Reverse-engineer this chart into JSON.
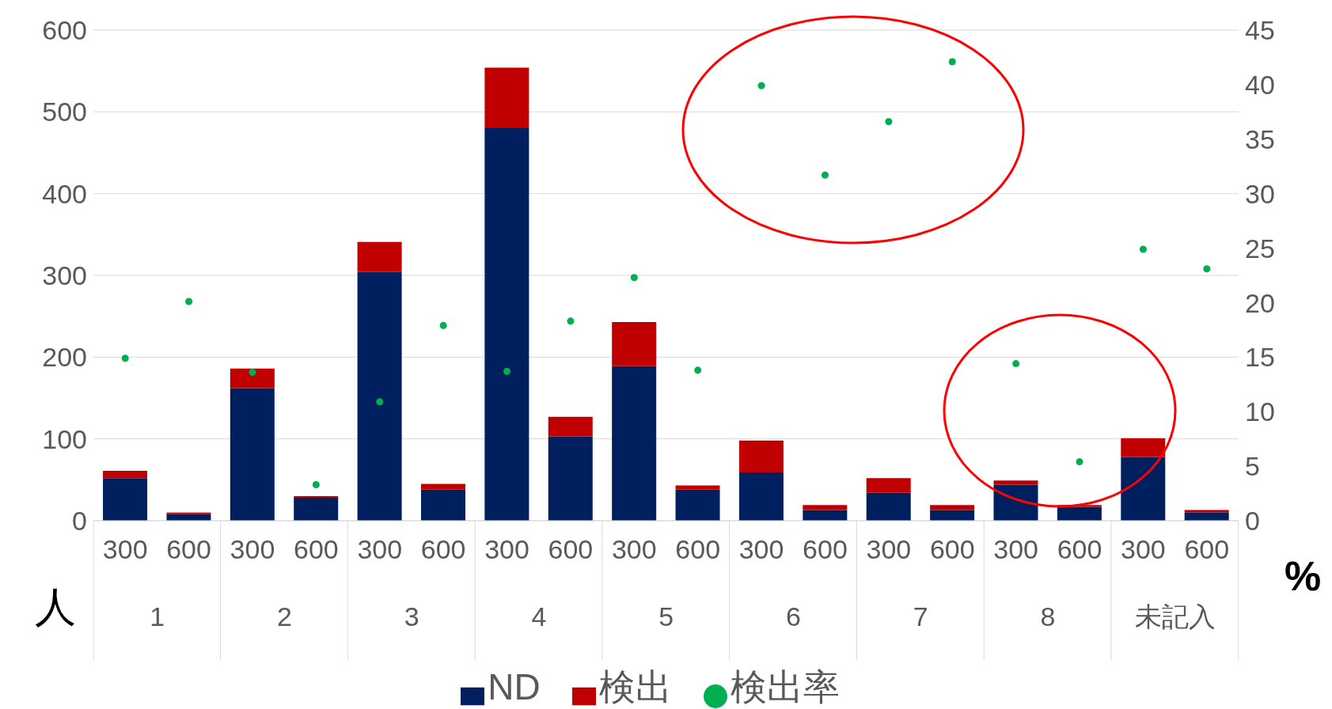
{
  "chart_data": {
    "type": "bar",
    "stacked": true,
    "categories": [
      "300",
      "600",
      "300",
      "600",
      "300",
      "600",
      "300",
      "600",
      "300",
      "600",
      "300",
      "600",
      "300",
      "600",
      "300",
      "600",
      "300",
      "600"
    ],
    "annotations": [
      "1",
      "2",
      "3",
      "4",
      "5",
      "6",
      "7",
      "8",
      "未記入"
    ],
    "ylabel": "人",
    "y2label": "%",
    "ylim": [
      0,
      600
    ],
    "yticks": [
      0,
      100,
      200,
      300,
      400,
      500,
      600
    ],
    "y2lim": [
      0,
      45
    ],
    "y2ticks": [
      0,
      5,
      10,
      15,
      20,
      25,
      30,
      35,
      40,
      45
    ],
    "grid": "y",
    "legend": "bottom",
    "series": [
      {
        "name": "ND",
        "color": "#001f5f",
        "values": [
          52,
          8,
          162,
          28,
          304,
          38,
          480,
          103,
          189,
          38,
          59,
          13,
          34,
          13,
          44,
          17,
          78,
          10
        ]
      },
      {
        "name": "検出",
        "color": "#c00000",
        "values": [
          9,
          2,
          24,
          2,
          37,
          7,
          74,
          24,
          54,
          5,
          39,
          6,
          18,
          6,
          5,
          2,
          23,
          3
        ]
      },
      {
        "name": "検出率",
        "type": "scatter",
        "axis": "y2",
        "marker": "circle",
        "color": "#00b050",
        "values": [
          14.9,
          20.1,
          13.6,
          3.3,
          10.9,
          17.9,
          13.7,
          18.3,
          22.3,
          13.8,
          39.9,
          31.7,
          36.6,
          42.1,
          14.4,
          5.4,
          24.9,
          23.1
        ]
      }
    ]
  }
}
